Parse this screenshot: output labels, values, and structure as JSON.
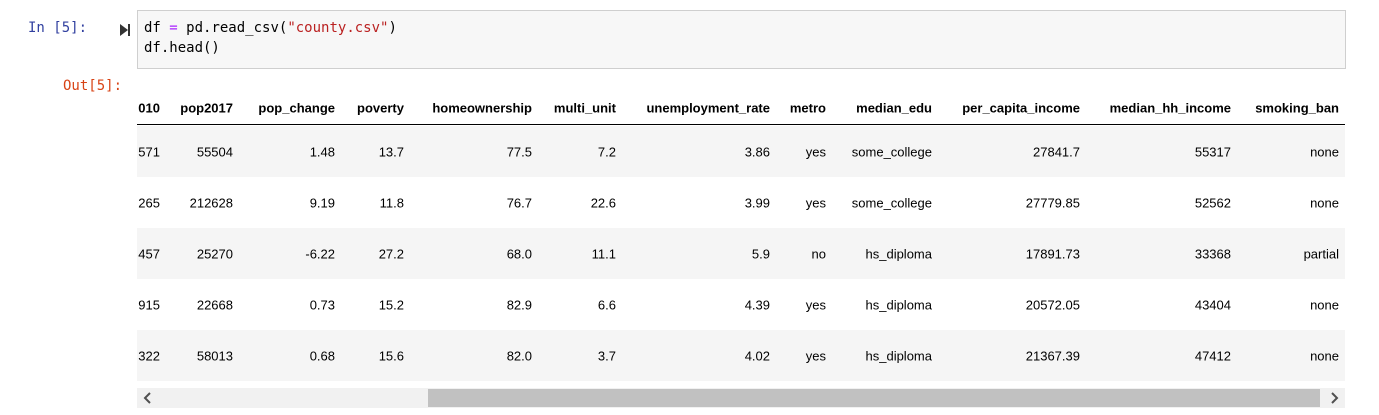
{
  "cell": {
    "in_prompt": "In [5]:",
    "out_prompt": "Out[5]:",
    "code": [
      [
        "df ",
        "=",
        " pd.read_csv(",
        "\"county.csv\"",
        ")"
      ],
      [
        "df.head()"
      ]
    ]
  },
  "table": {
    "columns": [
      "010",
      "pop2017",
      "pop_change",
      "poverty",
      "homeownership",
      "multi_unit",
      "unemployment_rate",
      "metro",
      "median_edu",
      "per_capita_income",
      "median_hh_income",
      "smoking_ban"
    ],
    "rows": [
      [
        "571",
        "55504",
        "1.48",
        "13.7",
        "77.5",
        "7.2",
        "3.86",
        "yes",
        "some_college",
        "27841.7",
        "55317",
        "none"
      ],
      [
        "265",
        "212628",
        "9.19",
        "11.8",
        "76.7",
        "22.6",
        "3.99",
        "yes",
        "some_college",
        "27779.85",
        "52562",
        "none"
      ],
      [
        "457",
        "25270",
        "-6.22",
        "27.2",
        "68.0",
        "11.1",
        "5.9",
        "no",
        "hs_diploma",
        "17891.73",
        "33368",
        "partial"
      ],
      [
        "915",
        "22668",
        "0.73",
        "15.2",
        "82.9",
        "6.6",
        "4.39",
        "yes",
        "hs_diploma",
        "20572.05",
        "43404",
        "none"
      ],
      [
        "322",
        "58013",
        "0.68",
        "15.6",
        "82.0",
        "3.7",
        "4.02",
        "yes",
        "hs_diploma",
        "21367.39",
        "47412",
        "none"
      ]
    ]
  }
}
